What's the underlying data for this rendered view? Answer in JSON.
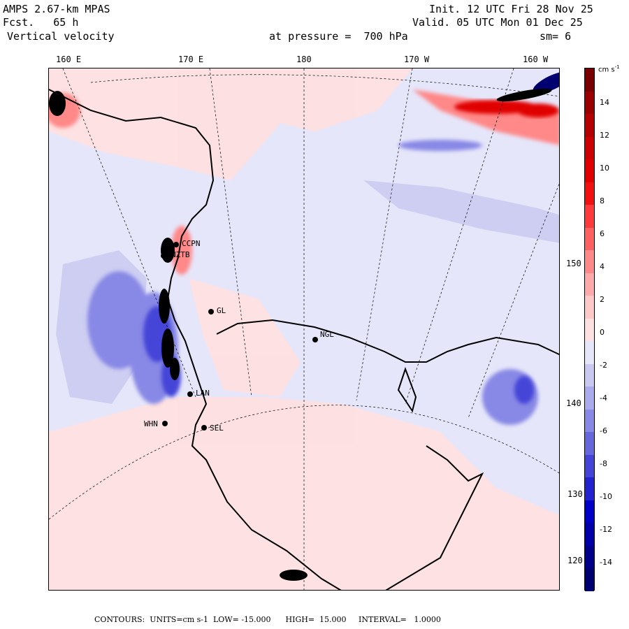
{
  "header": {
    "model": "AMPS 2.67-km MPAS",
    "forecast": "Fcst.   65 h",
    "field": "Vertical velocity",
    "init": "Init. 12 UTC Fri 28 Nov 25",
    "valid": "Valid. 05 UTC Mon 01 Dec 25",
    "pressure": "at pressure =  700 hPa",
    "smooth": "sm= 6"
  },
  "lon_labels": [
    "160 E",
    "170 E",
    "180",
    "170 W",
    "160 W"
  ],
  "lat_labels": [
    "150 W",
    "140 W",
    "130 W",
    "120 W"
  ],
  "stations": [
    "CCPN",
    "NZTB",
    "GL",
    "LAN",
    "WHN",
    "SEL",
    "NGL"
  ],
  "colorbar": {
    "unit": "cm s",
    "unit_exp": "-1",
    "ticks": [
      "14",
      "12",
      "10",
      "8",
      "6",
      "4",
      "2",
      "0",
      "-2",
      "-4",
      "-6",
      "-8",
      "-10",
      "-12",
      "-14"
    ],
    "colors": [
      "#7a0000",
      "#9a0000",
      "#b40000",
      "#cc0000",
      "#e00000",
      "#f21010",
      "#ff3a3a",
      "#ff6060",
      "#ff8888",
      "#ffaaaa",
      "#ffc8c8",
      "#ffe0e0",
      "#e6e6fa",
      "#c8c8f0",
      "#aaaaee",
      "#8888e6",
      "#6666dd",
      "#4444d8",
      "#2222d0",
      "#0000c8",
      "#0000a8",
      "#00008a",
      "#000070"
    ]
  },
  "footer": "CONTOURS:  UNITS=cm s-1  LOW= -15.000      HIGH=  15.000     INTERVAL=   1.0000"
}
